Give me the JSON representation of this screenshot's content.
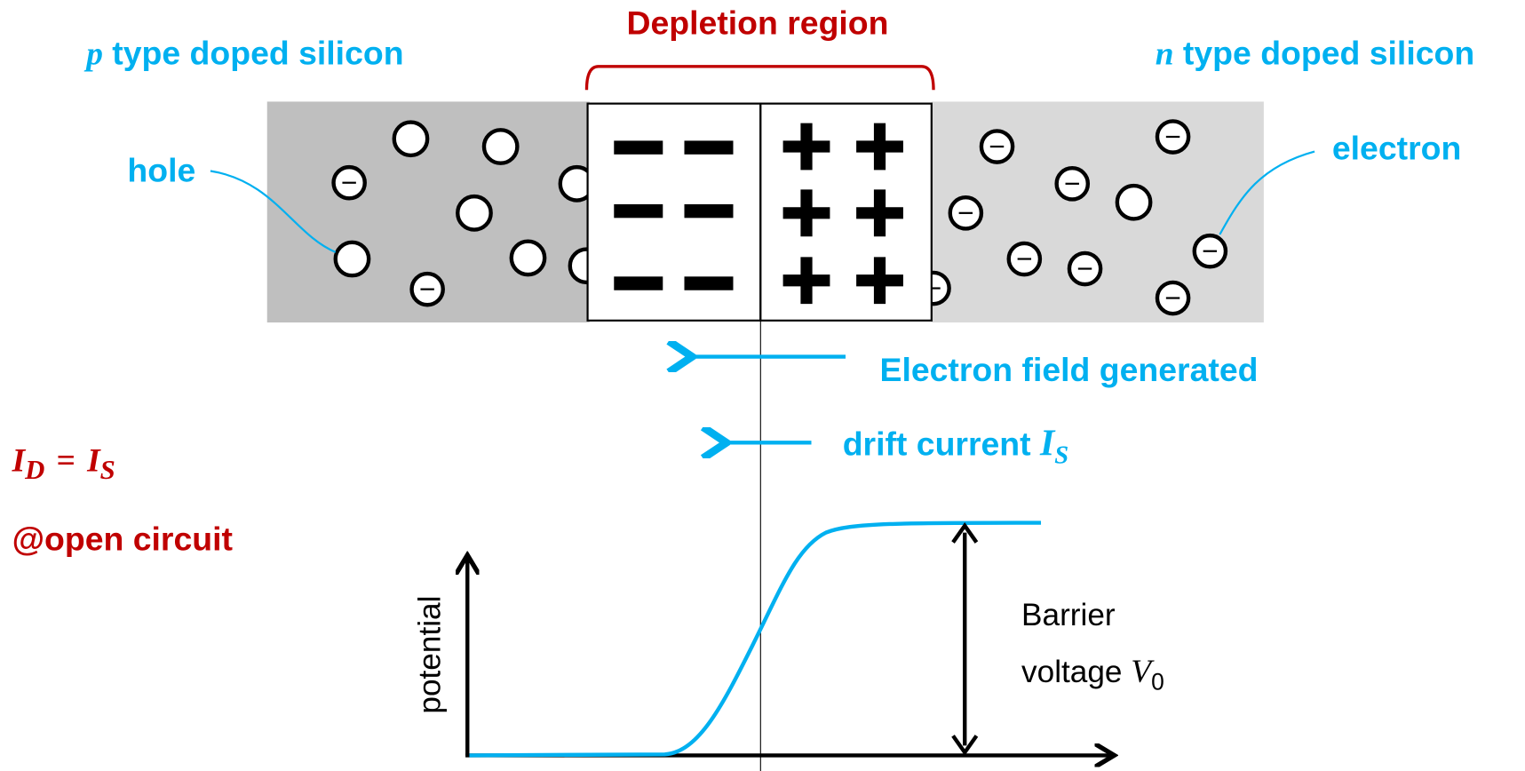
{
  "depletion_region": "Depletion region",
  "p_side": {
    "symbol": "p",
    "label": "type doped silicon"
  },
  "n_side": {
    "symbol": "n",
    "label": "type doped silicon"
  },
  "hole_label": "hole",
  "electron_label": "electron",
  "field_label": "Electron field generated",
  "drift_label": {
    "text": "drift current",
    "symbol": "I",
    "subscript": "S"
  },
  "equation": {
    "lhs": "I",
    "lhs_sub": "D",
    "op": "=",
    "rhs": "I",
    "rhs_sub": "S"
  },
  "condition": "@open circuit",
  "graph": {
    "y_label": "potential",
    "barrier": {
      "line1": "Barrier",
      "line2": "voltage",
      "symbol": "V",
      "subscript": "0"
    }
  }
}
